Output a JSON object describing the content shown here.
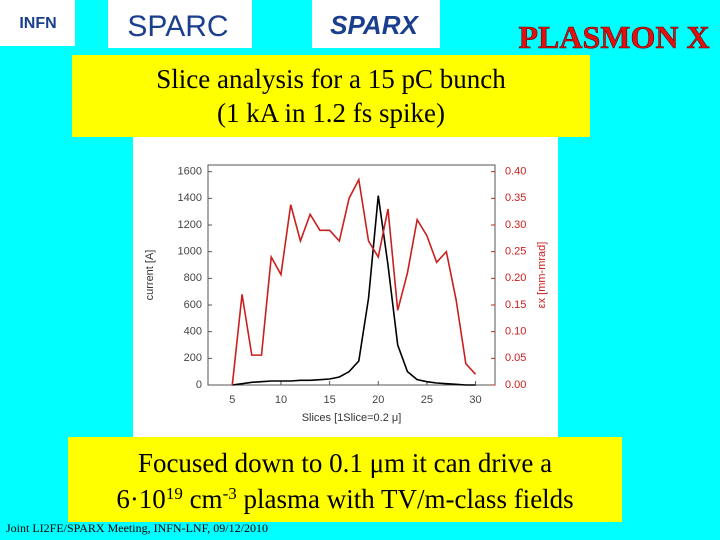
{
  "header": {
    "logos": [
      "INFN",
      "SPARC",
      "SPARX",
      "PLASMON X"
    ]
  },
  "title_box": {
    "lines": [
      "Slice analysis for a 15 pC bunch",
      "(1 kA in 1.2 fs spike)"
    ]
  },
  "chart_data": {
    "type": "line",
    "x_label": "Slices  [1Slice=0.2 μ]",
    "y_label": "current [A]",
    "y2_label": "εx [mm-mrad]",
    "x": [
      5,
      6,
      7,
      8,
      9,
      10,
      11,
      12,
      13,
      14,
      15,
      16,
      17,
      18,
      19,
      20,
      21,
      22,
      23,
      24,
      25,
      26,
      27,
      28,
      29,
      30
    ],
    "series": [
      {
        "name": "current",
        "color": "#000000",
        "values": [
          0,
          10,
          20,
          25,
          30,
          30,
          30,
          35,
          35,
          40,
          45,
          60,
          100,
          180,
          650,
          1420,
          900,
          300,
          100,
          40,
          25,
          15,
          10,
          5,
          0,
          0
        ]
      },
      {
        "name": "emittance",
        "color": "#c8201e",
        "axis": "y2",
        "values": [
          0,
          0.17,
          0.056,
          0.056,
          0.24,
          0.207,
          0.338,
          0.27,
          0.32,
          0.29,
          0.29,
          0.27,
          0.35,
          0.385,
          0.27,
          0.24,
          0.33,
          0.14,
          0.21,
          0.31,
          0.28,
          0.23,
          0.25,
          0.16,
          0.04,
          0.02
        ]
      }
    ],
    "xlim": [
      2.5,
      32
    ],
    "xticks": [
      5,
      10,
      15,
      20,
      25,
      30
    ],
    "ylim": [
      0,
      1650
    ],
    "yticks": [
      0,
      200,
      400,
      600,
      800,
      1000,
      1200,
      1400,
      1600
    ],
    "y2lim": [
      0,
      0.4125
    ],
    "y2ticks": [
      {
        "value": 0,
        "label": "0.00"
      },
      {
        "value": 0.05,
        "label": "0.05"
      },
      {
        "value": 0.1,
        "label": "0.10"
      },
      {
        "value": 0.15,
        "label": "0.15"
      },
      {
        "value": 0.2,
        "label": "0.20"
      },
      {
        "value": 0.25,
        "label": "0.25"
      },
      {
        "value": 0.3,
        "label": "0.30"
      },
      {
        "value": 0.35,
        "label": "0.35"
      },
      {
        "value": 0.4,
        "label": "0.40"
      }
    ]
  },
  "bottom_box": {
    "line1": "Focused down to 0.1 μm it can drive a",
    "line2": [
      {
        "text": "6·10"
      },
      {
        "text": "19",
        "sup": true
      },
      {
        "text": " cm"
      },
      {
        "text": "-3",
        "sup": true
      },
      {
        "text": " plasma with TV/m-class fields"
      }
    ]
  },
  "footer": "Joint LI2FE/SPARX Meeting, INFN-LNF, 09/12/2010"
}
